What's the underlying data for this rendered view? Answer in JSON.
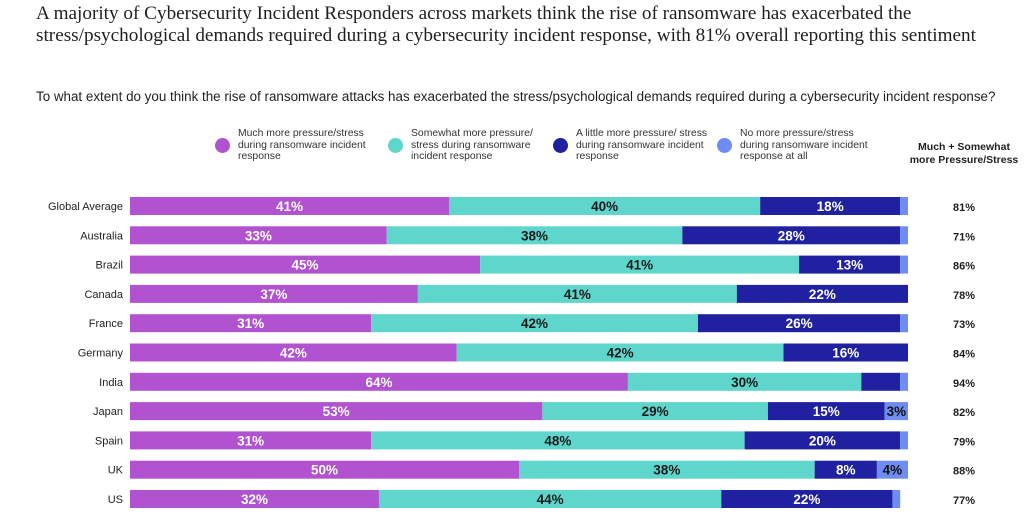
{
  "headline": "A majority of Cybersecurity Incident Responders across markets think the rise of ransomware has exacerbated the stress/psychological demands required during a cybersecurity incident response, with 81% overall reporting this sentiment",
  "subtitle": "To what extent do you think the rise of ransomware attacks has exacerbated the stress/psychological demands required during a cybersecurity incident response?",
  "summary_header": "Much + Somewhat more Pressure/Stress",
  "colors": {
    "much_more": "#b153d0",
    "somewhat_more": "#5ed6cc",
    "little_more": "#2021a0",
    "no_more": "#6e8cf1"
  },
  "chart_data": {
    "type": "bar",
    "orientation": "horizontal",
    "stacked": true,
    "title": "A majority of Cybersecurity Incident Responders across markets think the rise of ransomware has exacerbated the stress/psychological demands required during a cybersecurity incident response, with 81% overall reporting this sentiment",
    "xlim": [
      0,
      100
    ],
    "categories": [
      "Global Average",
      "Australia",
      "Brazil",
      "Canada",
      "France",
      "Germany",
      "India",
      "Japan",
      "Spain",
      "UK",
      "US"
    ],
    "series": [
      {
        "key": "much_more",
        "name": "Much more pressure/stress during ransomware incident response",
        "values": [
          41,
          33,
          45,
          37,
          31,
          42,
          64,
          53,
          31,
          50,
          32
        ]
      },
      {
        "key": "somewhat_more",
        "name": "Somewhat more pressure/ stress during ransomware incident response",
        "values": [
          40,
          38,
          41,
          41,
          42,
          42,
          30,
          29,
          48,
          38,
          44
        ]
      },
      {
        "key": "little_more",
        "name": "A little more pressure/ stress during ransomware incident response",
        "values": [
          18,
          28,
          13,
          22,
          26,
          16,
          5,
          15,
          20,
          8,
          22
        ]
      },
      {
        "key": "no_more",
        "name": "No more pressure/stress during ransomware incident response at all",
        "values": [
          1,
          1,
          1,
          0,
          1,
          0,
          1,
          3,
          1,
          4,
          1
        ]
      }
    ],
    "data_labels": [
      [
        "41%",
        "40%",
        "18%",
        ""
      ],
      [
        "33%",
        "38%",
        "28%",
        ""
      ],
      [
        "45%",
        "41%",
        "13%",
        ""
      ],
      [
        "37%",
        "41%",
        "22%",
        ""
      ],
      [
        "31%",
        "42%",
        "26%",
        ""
      ],
      [
        "42%",
        "42%",
        "16%",
        ""
      ],
      [
        "64%",
        "30%",
        "",
        ""
      ],
      [
        "53%",
        "29%",
        "15%",
        "3%"
      ],
      [
        "31%",
        "48%",
        "20%",
        ""
      ],
      [
        "50%",
        "38%",
        "8%",
        "4%"
      ],
      [
        "32%",
        "44%",
        "22%",
        ""
      ]
    ],
    "summary_values": [
      "81%",
      "71%",
      "86%",
      "78%",
      "73%",
      "84%",
      "94%",
      "82%",
      "79%",
      "88%",
      "77%"
    ]
  }
}
